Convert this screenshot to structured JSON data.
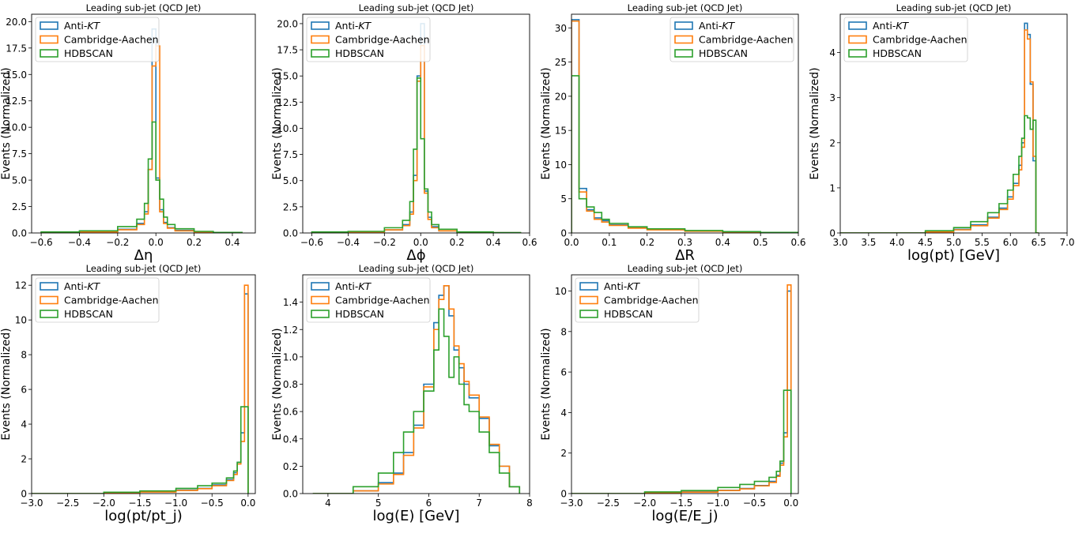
{
  "colors": {
    "anti_kt": "#1f77b4",
    "cambridge_aachen": "#ff7f0e",
    "hdbscan": "#2ca02c"
  },
  "legend": {
    "anti_kt_prefix": "Anti-",
    "anti_kt_italic": "KT",
    "cambridge_aachen": "Cambridge-Aachen",
    "hdbscan": "HDBSCAN"
  },
  "ylabel": "Events (Normalized)",
  "chart_data": [
    {
      "type": "step-histogram",
      "title": "Leading sub-jet (QCD Jet)",
      "xlabel": "Δη",
      "xlim": [
        -0.65,
        0.52
      ],
      "ylim": [
        0,
        20.7
      ],
      "xticks": [
        -0.6,
        -0.4,
        -0.2,
        0.0,
        0.2,
        0.4
      ],
      "xtick_labels": [
        "−0.6",
        "−0.4",
        "−0.2",
        "0.0",
        "0.2",
        "0.4"
      ],
      "yticks": [
        0.0,
        2.5,
        5.0,
        7.5,
        10.0,
        12.5,
        15.0,
        17.5,
        20.0
      ],
      "ytick_labels": [
        "0.0",
        "2.5",
        "5.0",
        "7.5",
        "10.0",
        "12.5",
        "15.0",
        "17.5",
        "20.0"
      ],
      "series": [
        {
          "name": "Anti-KT",
          "x": [
            -0.6,
            -0.4,
            -0.2,
            -0.1,
            -0.06,
            -0.04,
            -0.02,
            0.0,
            0.02,
            0.04,
            0.06,
            0.1,
            0.2,
            0.3,
            0.45
          ],
          "y": [
            0.05,
            0.1,
            0.35,
            0.9,
            2.0,
            6.0,
            19.3,
            5.2,
            2.2,
            1.0,
            0.5,
            0.25,
            0.1,
            0.05
          ]
        },
        {
          "name": "Cambridge-Aachen",
          "x": [
            -0.6,
            -0.4,
            -0.2,
            -0.1,
            -0.06,
            -0.04,
            -0.02,
            0.0,
            0.02,
            0.04,
            0.06,
            0.1,
            0.2,
            0.3,
            0.45
          ],
          "y": [
            0.05,
            0.1,
            0.3,
            0.8,
            1.8,
            6.0,
            15.8,
            17.7,
            2.0,
            0.9,
            0.45,
            0.2,
            0.1,
            0.05
          ]
        },
        {
          "name": "HDBSCAN",
          "x": [
            -0.6,
            -0.4,
            -0.2,
            -0.1,
            -0.06,
            -0.04,
            -0.02,
            0.0,
            0.02,
            0.04,
            0.06,
            0.1,
            0.2,
            0.3,
            0.45
          ],
          "y": [
            0.1,
            0.2,
            0.6,
            1.3,
            2.8,
            7.0,
            10.5,
            5.0,
            3.2,
            1.5,
            0.8,
            0.4,
            0.15,
            0.05
          ]
        }
      ]
    },
    {
      "type": "step-histogram",
      "title": "Leading sub-jet (QCD Jet)",
      "xlabel": "Δϕ",
      "xlim": [
        -0.65,
        0.6
      ],
      "ylim": [
        0,
        20.9
      ],
      "xticks": [
        -0.6,
        -0.4,
        -0.2,
        0.0,
        0.2,
        0.4,
        0.6
      ],
      "xtick_labels": [
        "−0.6",
        "−0.4",
        "−0.2",
        "0.0",
        "0.2",
        "0.4",
        "0.6"
      ],
      "yticks": [
        0.0,
        2.5,
        5.0,
        7.5,
        10.0,
        12.5,
        15.0,
        17.5,
        20.0
      ],
      "ytick_labels": [
        "0.0",
        "2.5",
        "5.0",
        "7.5",
        "10.0",
        "12.5",
        "15.0",
        "17.5",
        "20.0"
      ],
      "series": [
        {
          "name": "Anti-KT",
          "x": [
            -0.6,
            -0.4,
            -0.2,
            -0.1,
            -0.06,
            -0.04,
            -0.02,
            0.0,
            0.02,
            0.04,
            0.06,
            0.1,
            0.2,
            0.4,
            0.55
          ],
          "y": [
            0.05,
            0.1,
            0.3,
            0.8,
            2.0,
            5.5,
            15.0,
            20.0,
            4.0,
            1.5,
            0.6,
            0.2,
            0.05,
            0.02
          ]
        },
        {
          "name": "Cambridge-Aachen",
          "x": [
            -0.6,
            -0.4,
            -0.2,
            -0.1,
            -0.06,
            -0.04,
            -0.02,
            0.0,
            0.02,
            0.04,
            0.06,
            0.1,
            0.2,
            0.4,
            0.55
          ],
          "y": [
            0.05,
            0.1,
            0.3,
            0.7,
            1.8,
            5.0,
            14.5,
            17.9,
            3.8,
            1.3,
            0.5,
            0.2,
            0.05,
            0.02
          ]
        },
        {
          "name": "HDBSCAN",
          "x": [
            -0.6,
            -0.4,
            -0.2,
            -0.1,
            -0.06,
            -0.04,
            -0.02,
            0.0,
            0.02,
            0.04,
            0.06,
            0.1,
            0.2,
            0.4,
            0.55
          ],
          "y": [
            0.1,
            0.15,
            0.5,
            1.2,
            3.0,
            8.0,
            14.8,
            9.0,
            4.2,
            2.0,
            0.8,
            0.35,
            0.1,
            0.03
          ]
        }
      ]
    },
    {
      "type": "step-histogram",
      "title": "Leading sub-jet (QCD Jet)",
      "xlabel": "ΔR",
      "xlim": [
        0,
        0.6
      ],
      "ylim": [
        0,
        32
      ],
      "xticks": [
        0.0,
        0.1,
        0.2,
        0.3,
        0.4,
        0.5,
        0.6
      ],
      "xtick_labels": [
        "0.0",
        "0.1",
        "0.2",
        "0.3",
        "0.4",
        "0.5",
        "0.6"
      ],
      "yticks": [
        0,
        5,
        10,
        15,
        20,
        25,
        30
      ],
      "ytick_labels": [
        "0",
        "5",
        "10",
        "15",
        "20",
        "25",
        "30"
      ],
      "series": [
        {
          "name": "Anti-KT",
          "x": [
            0,
            0.02,
            0.04,
            0.06,
            0.08,
            0.1,
            0.15,
            0.2,
            0.3,
            0.4,
            0.5,
            0.6
          ],
          "y": [
            31.2,
            6.5,
            3.4,
            2.2,
            1.8,
            1.2,
            0.8,
            0.5,
            0.3,
            0.15,
            0.05
          ]
        },
        {
          "name": "Cambridge-Aachen",
          "x": [
            0,
            0.02,
            0.04,
            0.06,
            0.08,
            0.1,
            0.15,
            0.2,
            0.3,
            0.4,
            0.5,
            0.6
          ],
          "y": [
            31.0,
            6.0,
            3.2,
            2.0,
            1.6,
            1.1,
            0.7,
            0.45,
            0.25,
            0.12,
            0.05
          ]
        },
        {
          "name": "HDBSCAN",
          "x": [
            0,
            0.02,
            0.04,
            0.06,
            0.08,
            0.1,
            0.15,
            0.2,
            0.3,
            0.4,
            0.5,
            0.6
          ],
          "y": [
            23.0,
            5.0,
            3.8,
            3.0,
            2.0,
            1.4,
            0.9,
            0.6,
            0.35,
            0.2,
            0.08
          ]
        }
      ]
    },
    {
      "type": "step-histogram",
      "title": "Leading sub-jet (QCD Jet)",
      "xlabel": "log(pt) [GeV]",
      "xlim": [
        3.0,
        7.0
      ],
      "ylim": [
        0,
        4.85
      ],
      "xticks": [
        3.0,
        3.5,
        4.0,
        4.5,
        5.0,
        5.5,
        6.0,
        6.5,
        7.0
      ],
      "xtick_labels": [
        "3.0",
        "3.5",
        "4.0",
        "4.5",
        "5.0",
        "5.5",
        "6.0",
        "6.5",
        "7.0"
      ],
      "yticks": [
        0,
        1,
        2,
        3,
        4
      ],
      "ytick_labels": [
        "0",
        "1",
        "2",
        "3",
        "4"
      ],
      "series": [
        {
          "name": "Anti-KT",
          "x": [
            3.0,
            4.5,
            5.0,
            5.3,
            5.6,
            5.8,
            5.95,
            6.05,
            6.15,
            6.2,
            6.25,
            6.3,
            6.35,
            6.4,
            6.45,
            6.5
          ],
          "y": [
            0.0,
            0.02,
            0.08,
            0.18,
            0.35,
            0.55,
            0.8,
            1.1,
            1.5,
            2.0,
            4.65,
            4.4,
            3.3,
            1.6,
            0
          ]
        },
        {
          "name": "Cambridge-Aachen",
          "x": [
            3.0,
            4.5,
            5.0,
            5.3,
            5.6,
            5.8,
            5.95,
            6.05,
            6.15,
            6.2,
            6.25,
            6.3,
            6.35,
            6.4,
            6.45,
            6.5
          ],
          "y": [
            0.0,
            0.02,
            0.07,
            0.16,
            0.33,
            0.52,
            0.75,
            1.05,
            1.4,
            1.9,
            4.5,
            4.3,
            3.35,
            1.7,
            0
          ]
        },
        {
          "name": "HDBSCAN",
          "x": [
            3.0,
            4.5,
            5.0,
            5.3,
            5.6,
            5.8,
            5.95,
            6.05,
            6.15,
            6.2,
            6.25,
            6.3,
            6.35,
            6.4,
            6.45,
            6.5
          ],
          "y": [
            0.0,
            0.05,
            0.12,
            0.25,
            0.45,
            0.65,
            0.95,
            1.3,
            1.7,
            2.1,
            2.6,
            2.55,
            2.3,
            2.5,
            0
          ]
        }
      ]
    },
    {
      "type": "step-histogram",
      "title": "Leading sub-jet (QCD Jet)",
      "xlabel": "log(pt/pt_j)",
      "xlim": [
        -3.0,
        0.1
      ],
      "ylim": [
        0,
        12.6
      ],
      "xticks": [
        -3.0,
        -2.5,
        -2.0,
        -1.5,
        -1.0,
        -0.5,
        0.0
      ],
      "xtick_labels": [
        "−3.0",
        "−2.5",
        "−2.0",
        "−1.5",
        "−1.0",
        "−0.5",
        "0.0"
      ],
      "yticks": [
        0,
        2,
        4,
        6,
        8,
        10,
        12
      ],
      "ytick_labels": [
        "0",
        "2",
        "4",
        "6",
        "8",
        "10",
        "12"
      ],
      "series": [
        {
          "name": "Anti-KT",
          "x": [
            -3.0,
            -2.0,
            -1.5,
            -1.0,
            -0.7,
            -0.5,
            -0.3,
            -0.2,
            -0.15,
            -0.1,
            -0.05,
            0.0
          ],
          "y": [
            0.0,
            0.05,
            0.1,
            0.2,
            0.3,
            0.5,
            0.8,
            1.2,
            1.8,
            3.5,
            11.5
          ]
        },
        {
          "name": "Cambridge-Aachen",
          "x": [
            -3.0,
            -2.0,
            -1.5,
            -1.0,
            -0.7,
            -0.5,
            -0.3,
            -0.2,
            -0.15,
            -0.1,
            -0.05,
            0.0
          ],
          "y": [
            0.0,
            0.04,
            0.09,
            0.18,
            0.28,
            0.45,
            0.75,
            1.1,
            1.7,
            3.0,
            12.0
          ]
        },
        {
          "name": "HDBSCAN",
          "x": [
            -3.0,
            -2.0,
            -1.5,
            -1.0,
            -0.7,
            -0.5,
            -0.3,
            -0.2,
            -0.15,
            -0.1,
            -0.05,
            0.0
          ],
          "y": [
            0.0,
            0.08,
            0.15,
            0.3,
            0.45,
            0.6,
            0.9,
            1.3,
            1.8,
            5.0,
            5.0
          ]
        }
      ]
    },
    {
      "type": "step-histogram",
      "title": "Leading sub-jet (QCD Jet)",
      "xlabel": "log(E) [GeV]",
      "xlim": [
        3.5,
        8.0
      ],
      "ylim": [
        0,
        1.6
      ],
      "xticks": [
        4,
        5,
        6,
        7,
        8
      ],
      "xtick_labels": [
        "4",
        "5",
        "6",
        "7",
        "8"
      ],
      "yticks": [
        0.0,
        0.2,
        0.4,
        0.6,
        0.8,
        1.0,
        1.2,
        1.4
      ],
      "ytick_labels": [
        "0.0",
        "0.2",
        "0.4",
        "0.6",
        "0.8",
        "1.0",
        "1.2",
        "1.4"
      ],
      "series": [
        {
          "name": "Anti-KT",
          "x": [
            3.7,
            4.5,
            5.0,
            5.3,
            5.5,
            5.7,
            5.9,
            6.1,
            6.2,
            6.3,
            6.4,
            6.5,
            6.6,
            6.7,
            6.8,
            7.0,
            7.2,
            7.4,
            7.6,
            7.8
          ],
          "y": [
            0.0,
            0.02,
            0.08,
            0.15,
            0.3,
            0.5,
            0.8,
            1.25,
            1.45,
            1.52,
            1.3,
            1.05,
            0.92,
            0.8,
            0.7,
            0.55,
            0.35,
            0.2,
            0.05
          ]
        },
        {
          "name": "Cambridge-Aachen",
          "x": [
            3.7,
            4.5,
            5.0,
            5.3,
            5.5,
            5.7,
            5.9,
            6.1,
            6.2,
            6.3,
            6.4,
            6.5,
            6.6,
            6.7,
            6.8,
            7.0,
            7.2,
            7.4,
            7.6,
            7.8
          ],
          "y": [
            0.0,
            0.02,
            0.07,
            0.14,
            0.28,
            0.48,
            0.78,
            1.2,
            1.42,
            1.52,
            1.35,
            1.08,
            0.95,
            0.82,
            0.72,
            0.56,
            0.36,
            0.2,
            0.05
          ]
        },
        {
          "name": "HDBSCAN",
          "x": [
            3.7,
            4.5,
            5.0,
            5.3,
            5.5,
            5.7,
            5.9,
            6.1,
            6.2,
            6.3,
            6.4,
            6.5,
            6.6,
            6.7,
            6.8,
            7.0,
            7.2,
            7.4,
            7.6,
            7.8
          ],
          "y": [
            0.0,
            0.05,
            0.15,
            0.3,
            0.45,
            0.6,
            0.75,
            1.05,
            1.35,
            1.15,
            0.85,
            1.0,
            0.8,
            0.65,
            0.6,
            0.45,
            0.3,
            0.15,
            0.05
          ]
        }
      ]
    },
    {
      "type": "step-histogram",
      "title": "Leading sub-jet (QCD Jet)",
      "xlabel": "log(E/E_j)",
      "xlim": [
        -3.0,
        0.1
      ],
      "ylim": [
        0,
        10.8
      ],
      "xticks": [
        -3.0,
        -2.5,
        -2.0,
        -1.5,
        -1.0,
        -0.5,
        0.0
      ],
      "xtick_labels": [
        "−3.0",
        "−2.5",
        "−2.0",
        "−1.5",
        "−1.0",
        "−0.5",
        "0.0"
      ],
      "yticks": [
        0,
        2,
        4,
        6,
        8,
        10
      ],
      "ytick_labels": [
        "0",
        "2",
        "4",
        "6",
        "8",
        "10"
      ],
      "series": [
        {
          "name": "Anti-KT",
          "x": [
            -3.0,
            -2.0,
            -1.5,
            -1.0,
            -0.7,
            -0.5,
            -0.3,
            -0.2,
            -0.15,
            -0.1,
            -0.05,
            0.0
          ],
          "y": [
            0.0,
            0.04,
            0.08,
            0.16,
            0.25,
            0.4,
            0.6,
            0.9,
            1.5,
            3.0,
            10.0
          ]
        },
        {
          "name": "Cambridge-Aachen",
          "x": [
            -3.0,
            -2.0,
            -1.5,
            -1.0,
            -0.7,
            -0.5,
            -0.3,
            -0.2,
            -0.15,
            -0.1,
            -0.05,
            0.0
          ],
          "y": [
            0.0,
            0.03,
            0.07,
            0.15,
            0.23,
            0.38,
            0.55,
            0.85,
            1.4,
            2.8,
            10.3
          ]
        },
        {
          "name": "HDBSCAN",
          "x": [
            -3.0,
            -2.0,
            -1.5,
            -1.0,
            -0.7,
            -0.5,
            -0.3,
            -0.2,
            -0.15,
            -0.1,
            -0.05,
            0.0
          ],
          "y": [
            0.0,
            0.08,
            0.15,
            0.3,
            0.45,
            0.6,
            0.8,
            1.1,
            1.6,
            5.1,
            5.1
          ]
        }
      ]
    }
  ]
}
